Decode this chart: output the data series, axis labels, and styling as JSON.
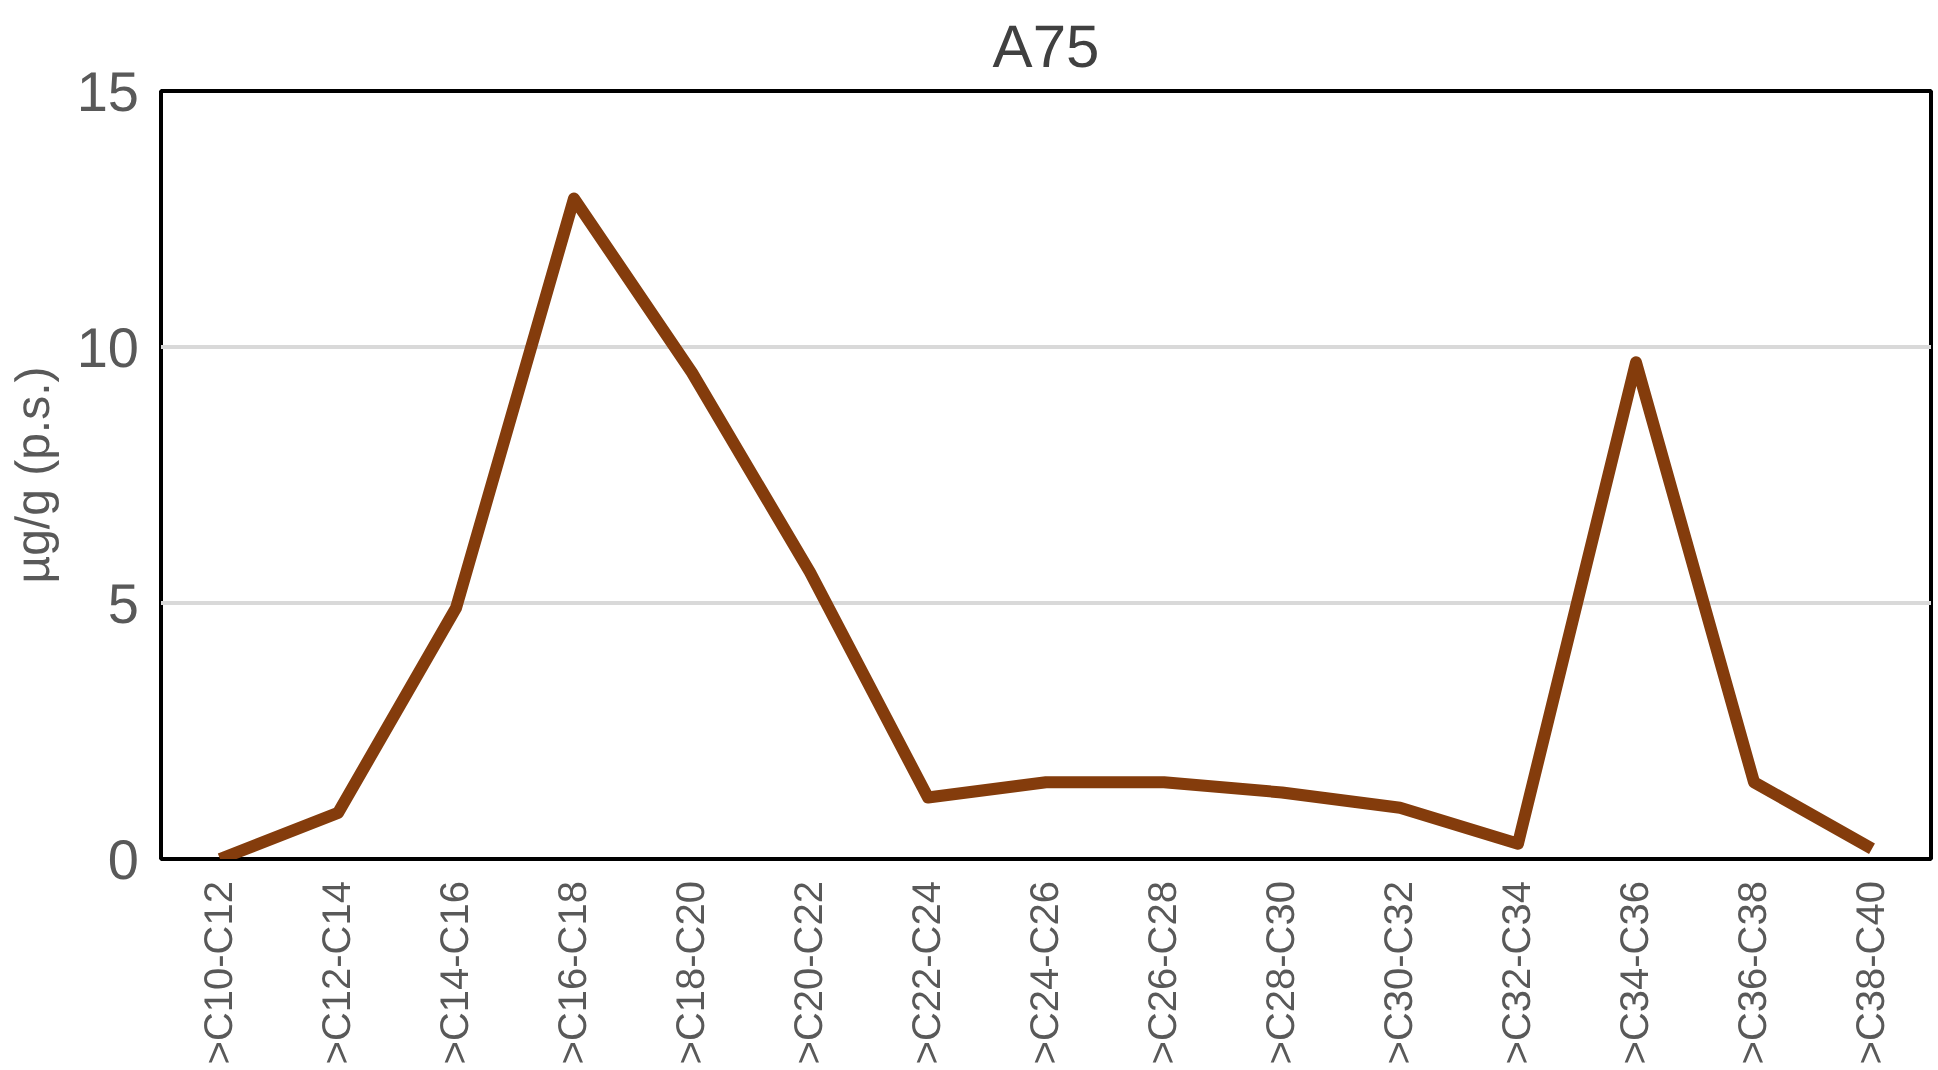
{
  "chart_data": {
    "type": "line",
    "title": "A75",
    "ylabel": "µg/g (p.s.)",
    "categories": [
      ">C10-C12",
      ">C12-C14",
      ">C14-C16",
      ">C16-C18",
      ">C18-C20",
      ">C20-C22",
      ">C22-C24",
      ">C24-C26",
      ">C26-C28",
      ">C28-C30",
      ">C30-C32",
      ">C32-C34",
      ">C34-C36",
      ">C36-C38",
      ">C38-C40"
    ],
    "series": [
      {
        "color": "#843c0c",
        "values": [
          0,
          0.9,
          4.9,
          12.9,
          9.5,
          5.6,
          1.2,
          1.5,
          1.5,
          1.3,
          1.0,
          0.3,
          9.7,
          1.5,
          0.2
        ]
      }
    ],
    "ylim": [
      0,
      15
    ],
    "yticks": [
      0,
      5,
      10,
      15
    ],
    "grid": "y",
    "marker": "none",
    "line_style": "solid"
  }
}
